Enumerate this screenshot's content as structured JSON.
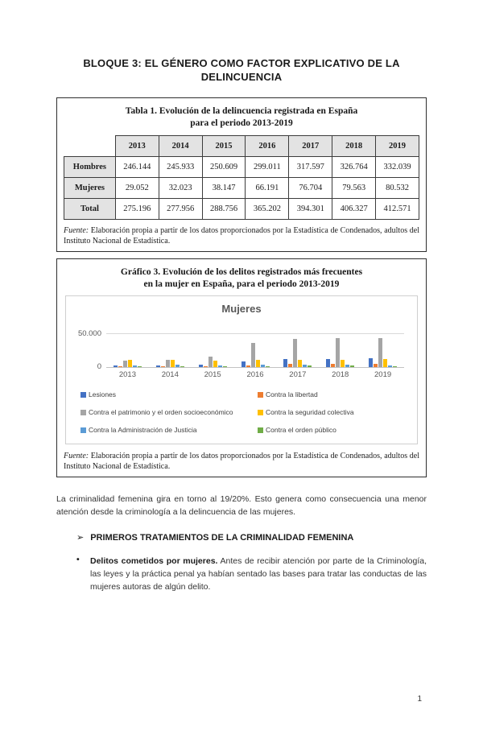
{
  "page": {
    "number": "1"
  },
  "title": "BLOQUE 3: EL GÉNERO COMO FACTOR EXPLICATIVO DE LA DELINCUENCIA",
  "tabla": {
    "title_line1": "Tabla 1. Evolución de la delincuencia registrada en España",
    "title_line2": "para el periodo 2013-2019",
    "columns": [
      "2013",
      "2014",
      "2015",
      "2016",
      "2017",
      "2018",
      "2019"
    ],
    "rows": [
      {
        "label": "Hombres",
        "values": [
          "246.144",
          "245.933",
          "250.609",
          "299.011",
          "317.597",
          "326.764",
          "332.039"
        ]
      },
      {
        "label": "Mujeres",
        "values": [
          "29.052",
          "32.023",
          "38.147",
          "66.191",
          "76.704",
          "79.563",
          "80.532"
        ]
      },
      {
        "label": "Total",
        "values": [
          "275.196",
          "277.956",
          "288.756",
          "365.202",
          "394.301",
          "406.327",
          "412.571"
        ]
      }
    ],
    "fuente_label": "Fuente:",
    "fuente_text": " Elaboración propia a partir de los datos proporcionados por la Estadística de Condenados, adultos del Instituto Nacional de Estadística."
  },
  "grafico": {
    "title_line1": "Gráfico 3. Evolución de los delitos registrados más frecuentes",
    "title_line2": "en la mujer en España, para el periodo 2013-2019",
    "fuente_label": "Fuente:",
    "fuente_text": " Elaboración propia a partir de los datos proporcionados por la Estadística de Condenados, adultos del Instituto Nacional de Estadística."
  },
  "chart_data": {
    "type": "bar",
    "title": "Mujeres",
    "categories": [
      "2013",
      "2014",
      "2015",
      "2016",
      "2017",
      "2018",
      "2019"
    ],
    "series": [
      {
        "name": "Lesiones",
        "color": "#4472C4",
        "values": [
          2500,
          3000,
          4000,
          9000,
          12000,
          12500,
          13000
        ]
      },
      {
        "name": "Contra la libertad",
        "color": "#ED7D31",
        "values": [
          500,
          600,
          800,
          2800,
          4500,
          4800,
          5000
        ]
      },
      {
        "name": "Contra el patrimonio y el orden socioeconómico",
        "color": "#A5A5A5",
        "values": [
          9500,
          11000,
          15500,
          36000,
          42500,
          44500,
          43500
        ]
      },
      {
        "name": "Contra la seguridad colectiva",
        "color": "#FFC000",
        "values": [
          11000,
          11000,
          10000,
          10800,
          11000,
          11500,
          12000
        ]
      },
      {
        "name": "Contra la Administración de Justicia",
        "color": "#5B9BD5",
        "values": [
          2200,
          3200,
          3000,
          3800,
          3500,
          3200,
          3000
        ]
      },
      {
        "name": "Contra el orden público",
        "color": "#70AD47",
        "values": [
          1300,
          1500,
          1800,
          1800,
          2200,
          2200,
          1800
        ]
      }
    ],
    "ylim": [
      0,
      50000
    ],
    "yticks": [
      "50.000",
      "0"
    ],
    "xlabel": "",
    "ylabel": "",
    "grid": true,
    "legend_position": "bottom"
  },
  "body": {
    "paragraph": "La criminalidad femenina gira en torno al 19/20%. Esto genera como consecuencia una menor atención desde la criminología a la delincuencia de las mujeres.",
    "heading_arrow": "➢",
    "heading": "PRIMEROS TRATAMIENTOS DE LA CRIMINALIDAD FEMENINA",
    "bullet_marker": "•",
    "bullet_bold": "Delitos cometidos por mujeres.",
    "bullet_text": " Antes de recibir atención por parte de la Criminología, las leyes y la práctica penal ya habían sentado las bases para tratar las conductas de las mujeres autoras de algún delito."
  }
}
